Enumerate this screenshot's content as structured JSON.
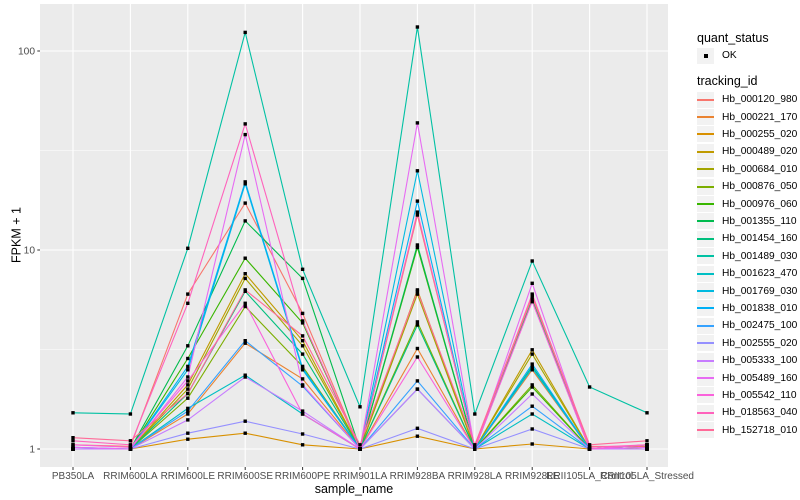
{
  "chart_data": {
    "type": "line",
    "title": "",
    "xlabel": "sample_name",
    "ylabel": "FPKM + 1",
    "y_scale": "log10",
    "ylim": [
      0.9,
      165
    ],
    "grid": true,
    "legend_position": "right",
    "y_ticks": [
      {
        "label": "1",
        "value": 1
      },
      {
        "label": "10",
        "value": 10
      },
      {
        "label": "100",
        "value": 100
      }
    ],
    "y_minor_values": [
      3.1623,
      31.623
    ],
    "categories": [
      "PB350LA",
      "RRIM600LA",
      "RRIM600LE",
      "RRIM600SE",
      "RRIM600PE",
      "RRIM901LA",
      "RRIM928BA",
      "RRIM928LA",
      "RRIM928LE",
      "RRII105LA_Control",
      "RRII105LA_Stressed"
    ],
    "series": [
      {
        "name": "Hb_000120_980",
        "color": "#F8766D",
        "values": [
          1.05,
          1.03,
          6.0,
          17.2,
          4.8,
          1.0,
          15.0,
          1.03,
          5.8,
          1.03,
          1.03
        ]
      },
      {
        "name": "Hb_000221_170",
        "color": "#EA8331",
        "values": [
          1.0,
          1.0,
          1.5,
          3.4,
          2.25,
          1.0,
          3.2,
          1.0,
          2.5,
          1.0,
          1.02
        ]
      },
      {
        "name": "Hb_000255_020",
        "color": "#D89000",
        "values": [
          1.0,
          1.0,
          1.12,
          1.2,
          1.05,
          1.0,
          1.16,
          1.0,
          1.06,
          1.0,
          1.05
        ]
      },
      {
        "name": "Hb_000489_020",
        "color": "#C09B00",
        "values": [
          1.0,
          1.0,
          2.1,
          7.6,
          3.5,
          1.0,
          6.3,
          1.0,
          3.15,
          1.0,
          1.0
        ]
      },
      {
        "name": "Hb_000684_010",
        "color": "#A3A500",
        "values": [
          1.0,
          1.0,
          2.0,
          7.2,
          3.3,
          1.0,
          6.0,
          1.0,
          3.0,
          1.0,
          1.0
        ]
      },
      {
        "name": "Hb_000876_050",
        "color": "#7CAE00",
        "values": [
          1.0,
          1.0,
          1.8,
          5.2,
          2.6,
          1.0,
          4.35,
          1.0,
          2.1,
          1.0,
          1.0
        ]
      },
      {
        "name": "Hb_000976_060",
        "color": "#39B600",
        "values": [
          1.0,
          1.0,
          2.85,
          9.1,
          4.3,
          1.0,
          10.3,
          1.0,
          2.05,
          1.0,
          1.02
        ]
      },
      {
        "name": "Hb_001355_110",
        "color": "#00BB4E",
        "values": [
          1.0,
          1.0,
          3.3,
          14.0,
          7.2,
          1.0,
          10.6,
          1.0,
          5.6,
          1.0,
          1.05
        ]
      },
      {
        "name": "Hb_001454_160",
        "color": "#00BF7D",
        "values": [
          1.0,
          1.0,
          1.9,
          6.2,
          3.0,
          1.0,
          4.2,
          1.0,
          2.6,
          1.0,
          1.0
        ]
      },
      {
        "name": "Hb_001489_030",
        "color": "#00C1A3",
        "values": [
          1.52,
          1.5,
          10.2,
          124,
          8.0,
          1.63,
          132,
          1.5,
          8.8,
          2.05,
          1.52
        ]
      },
      {
        "name": "Hb_001623_470",
        "color": "#00BFC4",
        "values": [
          1.0,
          1.0,
          1.6,
          2.35,
          1.5,
          1.0,
          2.0,
          1.0,
          1.5,
          1.0,
          1.0
        ]
      },
      {
        "name": "Hb_001769_030",
        "color": "#00BAE0",
        "values": [
          1.0,
          1.0,
          2.5,
          21.5,
          2.5,
          1.0,
          25.0,
          1.0,
          2.55,
          1.0,
          1.0
        ]
      },
      {
        "name": "Hb_001838_010",
        "color": "#00B0F6",
        "values": [
          1.02,
          1.0,
          2.6,
          22.0,
          2.55,
          1.0,
          17.6,
          1.0,
          2.67,
          1.0,
          1.0
        ]
      },
      {
        "name": "Hb_002475_100",
        "color": "#35A2FF",
        "values": [
          1.0,
          1.0,
          1.55,
          3.5,
          2.07,
          1.0,
          2.2,
          1.0,
          1.64,
          1.0,
          1.0
        ]
      },
      {
        "name": "Hb_002555_020",
        "color": "#9590FF",
        "values": [
          1.0,
          1.0,
          1.2,
          1.38,
          1.19,
          1.0,
          1.27,
          1.0,
          1.26,
          1.0,
          1.05
        ]
      },
      {
        "name": "Hb_005333_100",
        "color": "#C77CFF",
        "values": [
          1.0,
          1.0,
          1.4,
          2.3,
          1.55,
          1.0,
          2.0,
          1.0,
          1.89,
          1.0,
          1.0
        ]
      },
      {
        "name": "Hb_005489_160",
        "color": "#E76BF3",
        "values": [
          1.02,
          1.0,
          2.3,
          38.0,
          2.1,
          1.0,
          43.5,
          1.0,
          6.8,
          1.0,
          1.02
        ]
      },
      {
        "name": "Hb_005542_110",
        "color": "#FA62DB",
        "values": [
          1.05,
          1.02,
          2.2,
          5.4,
          1.5,
          1.0,
          2.9,
          1.0,
          5.5,
          1.0,
          1.05
        ]
      },
      {
        "name": "Hb_018563_040",
        "color": "#FF62BC",
        "values": [
          1.1,
          1.05,
          5.4,
          43.0,
          4.4,
          1.0,
          15.5,
          1.02,
          6.0,
          1.02,
          1.05
        ]
      },
      {
        "name": "Hb_152718_010",
        "color": "#FF6A98",
        "values": [
          1.14,
          1.1,
          1.9,
          6.3,
          3.7,
          1.05,
          6.2,
          1.05,
          5.9,
          1.05,
          1.1
        ]
      }
    ]
  },
  "legend": {
    "quant_status_title": "quant_status",
    "ok_label": "OK",
    "tracking_id_title": "tracking_id",
    "ok_shape": "square-point-icon"
  },
  "colors": {
    "figure_bg": "#FFFFFF",
    "panel_bg": "#EBEBEB",
    "grid": "#FFFFFF",
    "tick_text": "#4D4D4D",
    "tick_mark": "#333333",
    "axis_text": "#000000",
    "point": "#000000",
    "legend_key_bg": "#F2F2F2"
  }
}
